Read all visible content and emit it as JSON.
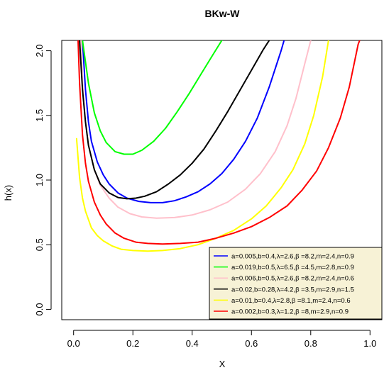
{
  "chart_data": {
    "type": "line",
    "title": "BKw-W",
    "xlabel": "X",
    "ylabel": "h(x)",
    "xlim": [
      -0.04,
      1.04
    ],
    "ylim": [
      -0.08,
      2.08
    ],
    "xticks": [
      "0.0",
      "0.2",
      "0.4",
      "0.6",
      "0.8",
      "1.0"
    ],
    "yticks": [
      "0.0",
      "0.5",
      "1.0",
      "1.5",
      "2.0"
    ],
    "grid": false,
    "legend_position": "bottom-right",
    "series": [
      {
        "name": "a=0.005,b=0.4,λ=2.6,β =8.2,m=2.4,n=0.9",
        "color": "#0000ff",
        "points": [
          [
            0.03,
            2.08
          ],
          [
            0.04,
            1.7
          ],
          [
            0.05,
            1.45
          ],
          [
            0.06,
            1.3
          ],
          [
            0.08,
            1.14
          ],
          [
            0.1,
            1.04
          ],
          [
            0.12,
            0.97
          ],
          [
            0.15,
            0.9
          ],
          [
            0.18,
            0.86
          ],
          [
            0.22,
            0.835
          ],
          [
            0.26,
            0.825
          ],
          [
            0.3,
            0.825
          ],
          [
            0.34,
            0.84
          ],
          [
            0.38,
            0.87
          ],
          [
            0.42,
            0.91
          ],
          [
            0.46,
            0.97
          ],
          [
            0.5,
            1.05
          ],
          [
            0.54,
            1.16
          ],
          [
            0.58,
            1.3
          ],
          [
            0.62,
            1.48
          ],
          [
            0.66,
            1.72
          ],
          [
            0.7,
            2.0
          ],
          [
            0.71,
            2.08
          ]
        ]
      },
      {
        "name": "a=0.019,b=0.5,λ=6.5,β =4.5,m=2.8,n=0.9",
        "color": "#00ff00",
        "points": [
          [
            0.03,
            2.08
          ],
          [
            0.05,
            1.75
          ],
          [
            0.07,
            1.52
          ],
          [
            0.09,
            1.38
          ],
          [
            0.11,
            1.29
          ],
          [
            0.14,
            1.22
          ],
          [
            0.17,
            1.2
          ],
          [
            0.2,
            1.2
          ],
          [
            0.23,
            1.23
          ],
          [
            0.27,
            1.3
          ],
          [
            0.31,
            1.4
          ],
          [
            0.35,
            1.53
          ],
          [
            0.39,
            1.67
          ],
          [
            0.43,
            1.82
          ],
          [
            0.47,
            1.97
          ],
          [
            0.5,
            2.08
          ]
        ]
      },
      {
        "name": "a=0.006,b=0.5,λ=2.6,β =8.2,m=2.4,n=0.6",
        "color": "#ffc0cb",
        "points": [
          [
            0.025,
            2.08
          ],
          [
            0.03,
            1.75
          ],
          [
            0.04,
            1.45
          ],
          [
            0.05,
            1.27
          ],
          [
            0.07,
            1.08
          ],
          [
            0.09,
            0.96
          ],
          [
            0.12,
            0.86
          ],
          [
            0.15,
            0.79
          ],
          [
            0.19,
            0.74
          ],
          [
            0.23,
            0.715
          ],
          [
            0.28,
            0.705
          ],
          [
            0.34,
            0.71
          ],
          [
            0.4,
            0.73
          ],
          [
            0.46,
            0.77
          ],
          [
            0.52,
            0.83
          ],
          [
            0.58,
            0.93
          ],
          [
            0.63,
            1.05
          ],
          [
            0.68,
            1.22
          ],
          [
            0.72,
            1.42
          ],
          [
            0.75,
            1.63
          ],
          [
            0.78,
            1.9
          ],
          [
            0.8,
            2.08
          ]
        ]
      },
      {
        "name": "a=0.02,b=0.28,λ=4.2,β =3.5,m=2.9,n=1.5",
        "color": "#000000",
        "points": [
          [
            0.02,
            2.08
          ],
          [
            0.03,
            1.7
          ],
          [
            0.04,
            1.45
          ],
          [
            0.05,
            1.27
          ],
          [
            0.07,
            1.08
          ],
          [
            0.09,
            0.97
          ],
          [
            0.12,
            0.9
          ],
          [
            0.15,
            0.865
          ],
          [
            0.18,
            0.855
          ],
          [
            0.21,
            0.86
          ],
          [
            0.24,
            0.875
          ],
          [
            0.28,
            0.91
          ],
          [
            0.32,
            0.97
          ],
          [
            0.36,
            1.04
          ],
          [
            0.4,
            1.13
          ],
          [
            0.44,
            1.24
          ],
          [
            0.48,
            1.38
          ],
          [
            0.52,
            1.53
          ],
          [
            0.56,
            1.69
          ],
          [
            0.6,
            1.85
          ],
          [
            0.64,
            2.01
          ],
          [
            0.66,
            2.08
          ]
        ]
      },
      {
        "name": "a=0.01,b=0.4,λ=2.8,β =8.1,m=2.4,n=0.6",
        "color": "#ffff00",
        "points": [
          [
            0.01,
            1.32
          ],
          [
            0.02,
            1.02
          ],
          [
            0.03,
            0.86
          ],
          [
            0.04,
            0.76
          ],
          [
            0.06,
            0.63
          ],
          [
            0.08,
            0.57
          ],
          [
            0.1,
            0.53
          ],
          [
            0.13,
            0.49
          ],
          [
            0.16,
            0.465
          ],
          [
            0.2,
            0.455
          ],
          [
            0.25,
            0.45
          ],
          [
            0.3,
            0.455
          ],
          [
            0.36,
            0.47
          ],
          [
            0.42,
            0.5
          ],
          [
            0.48,
            0.55
          ],
          [
            0.54,
            0.61
          ],
          [
            0.6,
            0.7
          ],
          [
            0.65,
            0.8
          ],
          [
            0.7,
            0.94
          ],
          [
            0.74,
            1.08
          ],
          [
            0.78,
            1.28
          ],
          [
            0.81,
            1.5
          ],
          [
            0.84,
            1.8
          ],
          [
            0.86,
            2.08
          ]
        ]
      },
      {
        "name": "a=0.002,b=0.3,λ=1.2,β =8,m=2.9,n=0.9",
        "color": "#ff0000",
        "points": [
          [
            0.015,
            2.08
          ],
          [
            0.02,
            1.75
          ],
          [
            0.03,
            1.35
          ],
          [
            0.04,
            1.13
          ],
          [
            0.05,
            0.99
          ],
          [
            0.07,
            0.83
          ],
          [
            0.09,
            0.73
          ],
          [
            0.11,
            0.66
          ],
          [
            0.14,
            0.59
          ],
          [
            0.17,
            0.55
          ],
          [
            0.21,
            0.52
          ],
          [
            0.25,
            0.51
          ],
          [
            0.3,
            0.505
          ],
          [
            0.36,
            0.51
          ],
          [
            0.42,
            0.52
          ],
          [
            0.48,
            0.55
          ],
          [
            0.54,
            0.59
          ],
          [
            0.6,
            0.64
          ],
          [
            0.66,
            0.71
          ],
          [
            0.72,
            0.8
          ],
          [
            0.77,
            0.92
          ],
          [
            0.82,
            1.07
          ],
          [
            0.86,
            1.25
          ],
          [
            0.9,
            1.48
          ],
          [
            0.93,
            1.72
          ],
          [
            0.96,
            2.05
          ],
          [
            0.965,
            2.08
          ]
        ]
      }
    ]
  }
}
